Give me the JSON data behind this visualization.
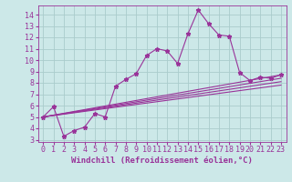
{
  "background_color": "#cce8e8",
  "grid_color": "#aacccc",
  "line_color": "#993399",
  "xlabel": "Windchill (Refroidissement éolien,°C)",
  "xlabel_fontsize": 6.5,
  "tick_fontsize": 6,
  "xlim": [
    -0.5,
    23.5
  ],
  "ylim": [
    2.8,
    14.8
  ],
  "yticks": [
    3,
    4,
    5,
    6,
    7,
    8,
    9,
    10,
    11,
    12,
    13,
    14
  ],
  "xticks": [
    0,
    1,
    2,
    3,
    4,
    5,
    6,
    7,
    8,
    9,
    10,
    11,
    12,
    13,
    14,
    15,
    16,
    17,
    18,
    19,
    20,
    21,
    22,
    23
  ],
  "main_line": [
    [
      0,
      5.0
    ],
    [
      1,
      5.9
    ],
    [
      2,
      3.3
    ],
    [
      3,
      3.8
    ],
    [
      4,
      4.1
    ],
    [
      5,
      5.3
    ],
    [
      6,
      5.0
    ],
    [
      7,
      7.7
    ],
    [
      8,
      8.3
    ],
    [
      9,
      8.8
    ],
    [
      10,
      10.4
    ],
    [
      11,
      11.0
    ],
    [
      12,
      10.8
    ],
    [
      13,
      9.7
    ],
    [
      14,
      12.3
    ],
    [
      15,
      14.4
    ],
    [
      16,
      13.2
    ],
    [
      17,
      12.2
    ],
    [
      18,
      12.1
    ],
    [
      19,
      8.9
    ],
    [
      20,
      8.2
    ],
    [
      21,
      8.5
    ],
    [
      22,
      8.4
    ],
    [
      23,
      8.7
    ]
  ],
  "diag_lines": [
    [
      [
        0,
        5.0
      ],
      [
        23,
        8.7
      ]
    ],
    [
      [
        0,
        5.0
      ],
      [
        23,
        8.4
      ]
    ],
    [
      [
        0,
        5.0
      ],
      [
        23,
        8.1
      ]
    ],
    [
      [
        0,
        5.0
      ],
      [
        23,
        7.8
      ]
    ]
  ]
}
